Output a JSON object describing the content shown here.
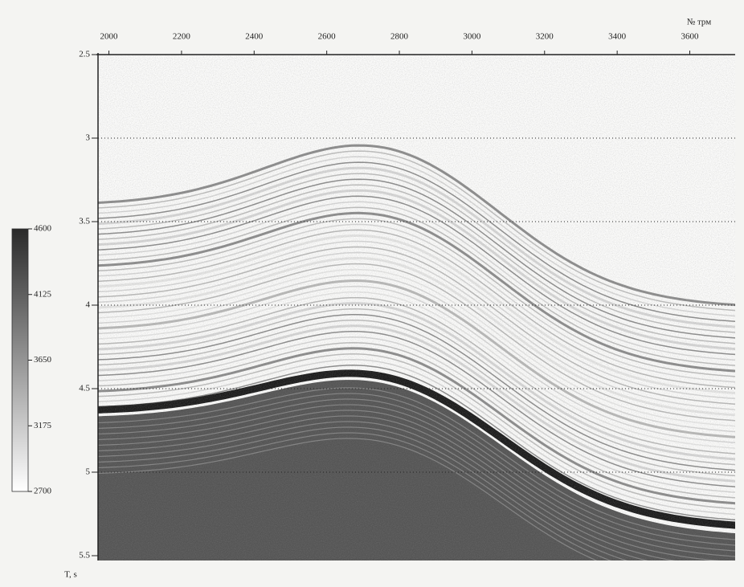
{
  "chart_data": {
    "type": "seismic-section",
    "x_label": "№ трм",
    "y_label": "T, s",
    "xlim": [
      1970,
      3725
    ],
    "xticks": [
      2000,
      2200,
      2400,
      2600,
      2800,
      3000,
      3200,
      3400,
      3600
    ],
    "ylim": [
      2.5,
      5.5
    ],
    "yticks": [
      2.5,
      3,
      3.5,
      4,
      4.5,
      5,
      5.5
    ],
    "grid": true,
    "colorbar": {
      "lim": [
        2700,
        4600
      ],
      "ticks": [
        4600,
        4125,
        3650,
        3175,
        2700
      ],
      "colors": [
        "#ffffff",
        "#2a2a2a"
      ]
    }
  }
}
